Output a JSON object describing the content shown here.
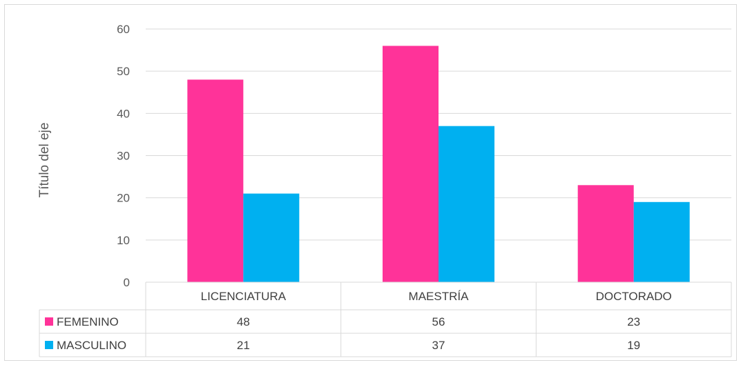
{
  "chart_data": {
    "type": "bar",
    "categories": [
      "LICENCIATURA",
      "MAESTRÍA",
      "DOCTORADO"
    ],
    "series": [
      {
        "name": "FEMENINO",
        "values": [
          48,
          56,
          23
        ],
        "color": "#ff3399"
      },
      {
        "name": "MASCULINO",
        "values": [
          21,
          37,
          19
        ],
        "color": "#00b0f0"
      }
    ],
    "title": "",
    "xlabel": "",
    "ylabel": "Título del eje",
    "ylim": [
      0,
      60
    ],
    "yticks": [
      0,
      10,
      20,
      30,
      40,
      50,
      60
    ],
    "grid": true,
    "legend": "data-table"
  }
}
